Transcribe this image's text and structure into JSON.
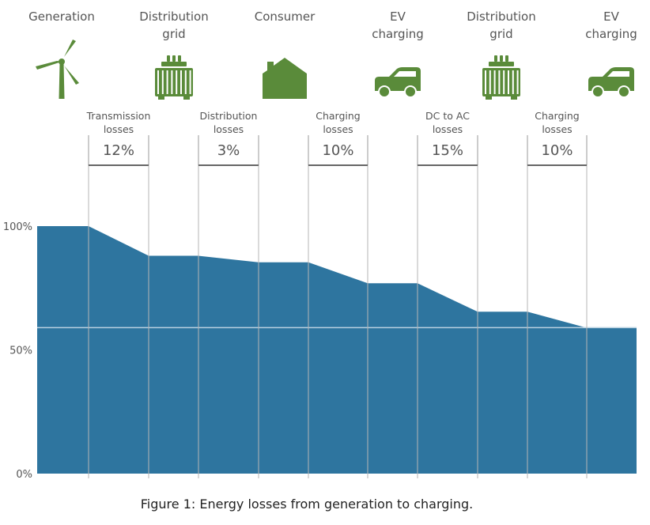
{
  "chart_data": {
    "type": "area",
    "title": "",
    "caption": "Figure 1: Energy losses from generation to charging.",
    "y_axis": {
      "ticks": [
        {
          "value": 100,
          "label": "100%"
        },
        {
          "value": 50,
          "label": "50%"
        },
        {
          "value": 0,
          "label": "0%"
        }
      ],
      "ylim": [
        0,
        100
      ]
    },
    "gridline_value": 59,
    "levels_percent": [
      100,
      88,
      85.4,
      76.9,
      65.4,
      58.9
    ],
    "stages": [
      {
        "label_lines": [
          "Generation"
        ],
        "icon": "wind-turbine-icon"
      },
      {
        "label_lines": [
          "Distribution",
          "grid"
        ],
        "icon": "transformer-icon"
      },
      {
        "label_lines": [
          "Consumer"
        ],
        "icon": "house-icon"
      },
      {
        "label_lines": [
          "EV",
          "charging"
        ],
        "icon": "ev-car-icon"
      },
      {
        "label_lines": [
          "Distribution",
          "grid"
        ],
        "icon": "transformer-icon"
      },
      {
        "label_lines": [
          "EV",
          "charging"
        ],
        "icon": "ev-car-icon"
      }
    ],
    "losses": [
      {
        "label_lines": [
          "Transmission",
          "losses"
        ],
        "value": "12%"
      },
      {
        "label_lines": [
          "Distribution",
          "losses"
        ],
        "value": "3%"
      },
      {
        "label_lines": [
          "Charging",
          "losses"
        ],
        "value": "10%"
      },
      {
        "label_lines": [
          "DC to AC",
          "losses"
        ],
        "value": "15%"
      },
      {
        "label_lines": [
          "Charging",
          "losses"
        ],
        "value": "10%"
      }
    ],
    "colors": {
      "area": "#2e759f",
      "icon": "#5a8b3a",
      "gridline": "#b8d0e0",
      "text": "#555555"
    }
  }
}
